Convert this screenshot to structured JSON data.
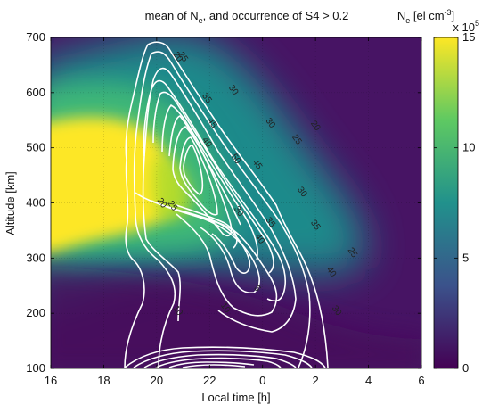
{
  "chart_data": {
    "type": "heatmap",
    "title_main": "mean of N",
    "title_sub": "e",
    "title_rest": ", and occurrence of S4 > 0.2",
    "xlabel": "Local time [h]",
    "ylabel": "Altitude [km]",
    "x_tick_labels": [
      "16",
      "18",
      "20",
      "22",
      "0",
      "2",
      "4",
      "6"
    ],
    "y_tick_labels": [
      "100",
      "200",
      "300",
      "400",
      "500",
      "600",
      "700"
    ],
    "xlim_hours": [
      16,
      30
    ],
    "ylim": [
      100,
      700
    ],
    "grid": true,
    "colorbar": {
      "label_main": "N",
      "label_sub": "e",
      "label_rest": " [el cm",
      "label_sup": "-3",
      "label_end": "]",
      "multiplier": "x 10",
      "multiplier_exp": "5",
      "range": [
        0,
        15
      ],
      "tick_labels": [
        "0",
        "5",
        "10",
        "15"
      ],
      "colormap": [
        "#440154",
        "#3b528b",
        "#21918c",
        "#5ec962",
        "#fde725"
      ]
    },
    "ne_peak_region": {
      "local_time_hours": [
        16,
        21
      ],
      "altitude_km": [
        300,
        500
      ],
      "value": 15
    },
    "contour_levels": [
      5,
      10,
      15,
      20,
      25,
      30,
      35,
      40,
      45,
      50
    ],
    "contour_labels": [
      {
        "text": "50",
        "x": 23.0,
        "y": 480
      },
      {
        "text": "45",
        "x": 22.1,
        "y": 545
      },
      {
        "text": "45",
        "x": 23.8,
        "y": 470
      },
      {
        "text": "40",
        "x": 21.9,
        "y": 510
      },
      {
        "text": "40",
        "x": 23.9,
        "y": 335
      },
      {
        "text": "40",
        "x": 26.6,
        "y": 275
      },
      {
        "text": "35",
        "x": 21.9,
        "y": 590
      },
      {
        "text": "35",
        "x": 24.3,
        "y": 365
      },
      {
        "text": "35",
        "x": 26.0,
        "y": 360
      },
      {
        "text": "30",
        "x": 22.9,
        "y": 605
      },
      {
        "text": "30",
        "x": 24.3,
        "y": 545
      },
      {
        "text": "30",
        "x": 25.5,
        "y": 420
      },
      {
        "text": "30",
        "x": 23.1,
        "y": 385
      },
      {
        "text": "30",
        "x": 26.8,
        "y": 205
      },
      {
        "text": "25",
        "x": 21.0,
        "y": 665
      },
      {
        "text": "25",
        "x": 25.3,
        "y": 515
      },
      {
        "text": "25",
        "x": 20.6,
        "y": 395
      },
      {
        "text": "25",
        "x": 27.4,
        "y": 310
      },
      {
        "text": "20",
        "x": 20.8,
        "y": 665
      },
      {
        "text": "20",
        "x": 26.0,
        "y": 540
      },
      {
        "text": "20",
        "x": 20.2,
        "y": 400
      },
      {
        "text": "10",
        "x": 20.8,
        "y": 205
      },
      {
        "text": "10",
        "x": 22.6,
        "y": 210
      },
      {
        "text": "5",
        "x": 23.8,
        "y": 245
      }
    ]
  }
}
